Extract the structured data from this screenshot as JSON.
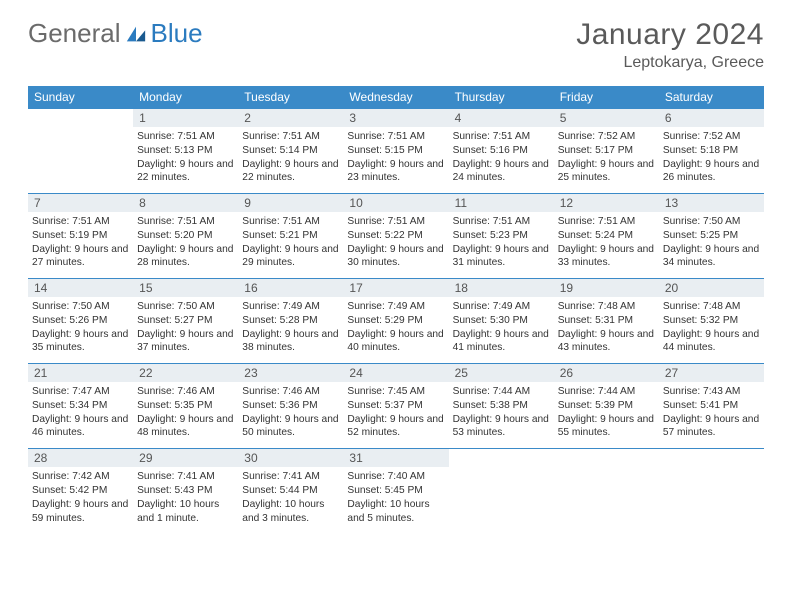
{
  "logo": {
    "text1": "General",
    "text2": "Blue"
  },
  "title": "January 2024",
  "location": "Leptokarya, Greece",
  "colors": {
    "header_bg": "#3a8ac8",
    "daynum_bg": "#e9eef2",
    "border": "#3a8ac8"
  },
  "daysOfWeek": [
    "Sunday",
    "Monday",
    "Tuesday",
    "Wednesday",
    "Thursday",
    "Friday",
    "Saturday"
  ],
  "weeks": [
    [
      null,
      {
        "n": "1",
        "sr": "7:51 AM",
        "ss": "5:13 PM",
        "dl": "Daylight: 9 hours and 22 minutes."
      },
      {
        "n": "2",
        "sr": "7:51 AM",
        "ss": "5:14 PM",
        "dl": "Daylight: 9 hours and 22 minutes."
      },
      {
        "n": "3",
        "sr": "7:51 AM",
        "ss": "5:15 PM",
        "dl": "Daylight: 9 hours and 23 minutes."
      },
      {
        "n": "4",
        "sr": "7:51 AM",
        "ss": "5:16 PM",
        "dl": "Daylight: 9 hours and 24 minutes."
      },
      {
        "n": "5",
        "sr": "7:52 AM",
        "ss": "5:17 PM",
        "dl": "Daylight: 9 hours and 25 minutes."
      },
      {
        "n": "6",
        "sr": "7:52 AM",
        "ss": "5:18 PM",
        "dl": "Daylight: 9 hours and 26 minutes."
      }
    ],
    [
      {
        "n": "7",
        "sr": "7:51 AM",
        "ss": "5:19 PM",
        "dl": "Daylight: 9 hours and 27 minutes."
      },
      {
        "n": "8",
        "sr": "7:51 AM",
        "ss": "5:20 PM",
        "dl": "Daylight: 9 hours and 28 minutes."
      },
      {
        "n": "9",
        "sr": "7:51 AM",
        "ss": "5:21 PM",
        "dl": "Daylight: 9 hours and 29 minutes."
      },
      {
        "n": "10",
        "sr": "7:51 AM",
        "ss": "5:22 PM",
        "dl": "Daylight: 9 hours and 30 minutes."
      },
      {
        "n": "11",
        "sr": "7:51 AM",
        "ss": "5:23 PM",
        "dl": "Daylight: 9 hours and 31 minutes."
      },
      {
        "n": "12",
        "sr": "7:51 AM",
        "ss": "5:24 PM",
        "dl": "Daylight: 9 hours and 33 minutes."
      },
      {
        "n": "13",
        "sr": "7:50 AM",
        "ss": "5:25 PM",
        "dl": "Daylight: 9 hours and 34 minutes."
      }
    ],
    [
      {
        "n": "14",
        "sr": "7:50 AM",
        "ss": "5:26 PM",
        "dl": "Daylight: 9 hours and 35 minutes."
      },
      {
        "n": "15",
        "sr": "7:50 AM",
        "ss": "5:27 PM",
        "dl": "Daylight: 9 hours and 37 minutes."
      },
      {
        "n": "16",
        "sr": "7:49 AM",
        "ss": "5:28 PM",
        "dl": "Daylight: 9 hours and 38 minutes."
      },
      {
        "n": "17",
        "sr": "7:49 AM",
        "ss": "5:29 PM",
        "dl": "Daylight: 9 hours and 40 minutes."
      },
      {
        "n": "18",
        "sr": "7:49 AM",
        "ss": "5:30 PM",
        "dl": "Daylight: 9 hours and 41 minutes."
      },
      {
        "n": "19",
        "sr": "7:48 AM",
        "ss": "5:31 PM",
        "dl": "Daylight: 9 hours and 43 minutes."
      },
      {
        "n": "20",
        "sr": "7:48 AM",
        "ss": "5:32 PM",
        "dl": "Daylight: 9 hours and 44 minutes."
      }
    ],
    [
      {
        "n": "21",
        "sr": "7:47 AM",
        "ss": "5:34 PM",
        "dl": "Daylight: 9 hours and 46 minutes."
      },
      {
        "n": "22",
        "sr": "7:46 AM",
        "ss": "5:35 PM",
        "dl": "Daylight: 9 hours and 48 minutes."
      },
      {
        "n": "23",
        "sr": "7:46 AM",
        "ss": "5:36 PM",
        "dl": "Daylight: 9 hours and 50 minutes."
      },
      {
        "n": "24",
        "sr": "7:45 AM",
        "ss": "5:37 PM",
        "dl": "Daylight: 9 hours and 52 minutes."
      },
      {
        "n": "25",
        "sr": "7:44 AM",
        "ss": "5:38 PM",
        "dl": "Daylight: 9 hours and 53 minutes."
      },
      {
        "n": "26",
        "sr": "7:44 AM",
        "ss": "5:39 PM",
        "dl": "Daylight: 9 hours and 55 minutes."
      },
      {
        "n": "27",
        "sr": "7:43 AM",
        "ss": "5:41 PM",
        "dl": "Daylight: 9 hours and 57 minutes."
      }
    ],
    [
      {
        "n": "28",
        "sr": "7:42 AM",
        "ss": "5:42 PM",
        "dl": "Daylight: 9 hours and 59 minutes."
      },
      {
        "n": "29",
        "sr": "7:41 AM",
        "ss": "5:43 PM",
        "dl": "Daylight: 10 hours and 1 minute."
      },
      {
        "n": "30",
        "sr": "7:41 AM",
        "ss": "5:44 PM",
        "dl": "Daylight: 10 hours and 3 minutes."
      },
      {
        "n": "31",
        "sr": "7:40 AM",
        "ss": "5:45 PM",
        "dl": "Daylight: 10 hours and 5 minutes."
      },
      null,
      null,
      null
    ]
  ]
}
